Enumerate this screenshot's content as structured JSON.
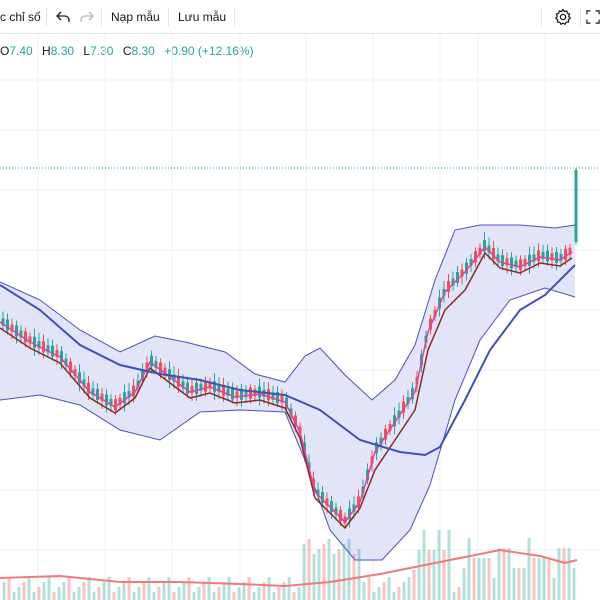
{
  "toolbar": {
    "indicators_label": "c chỉ số",
    "undo_icon": "undo-icon",
    "redo_icon": "redo-icon",
    "load_template_label": "Nạp mẫu",
    "save_template_label": "Lưu mẫu",
    "settings_icon": "gear-icon",
    "fullscreen_icon": "fullscreen-icon"
  },
  "ohlc": {
    "open_label": "O",
    "open": "7.40",
    "high_label": "H",
    "high": "8.30",
    "low_label": "L",
    "low": "7.30",
    "close_label": "C",
    "close": "8.30",
    "change": "+0.90 (+12.16%)"
  },
  "colors": {
    "up": "#26a69a",
    "down": "#ef5350",
    "bollinger_band": "#4a4fc4",
    "bollinger_fill": "#d6d8f3",
    "ma_short": "#e040a0",
    "ma_mid": "#8b2a1e",
    "ma_long": "#3f51b5",
    "volume_ma": "#f07a7a",
    "grid": "#eef0f3",
    "last_price_line": "#26a69a"
  }
}
